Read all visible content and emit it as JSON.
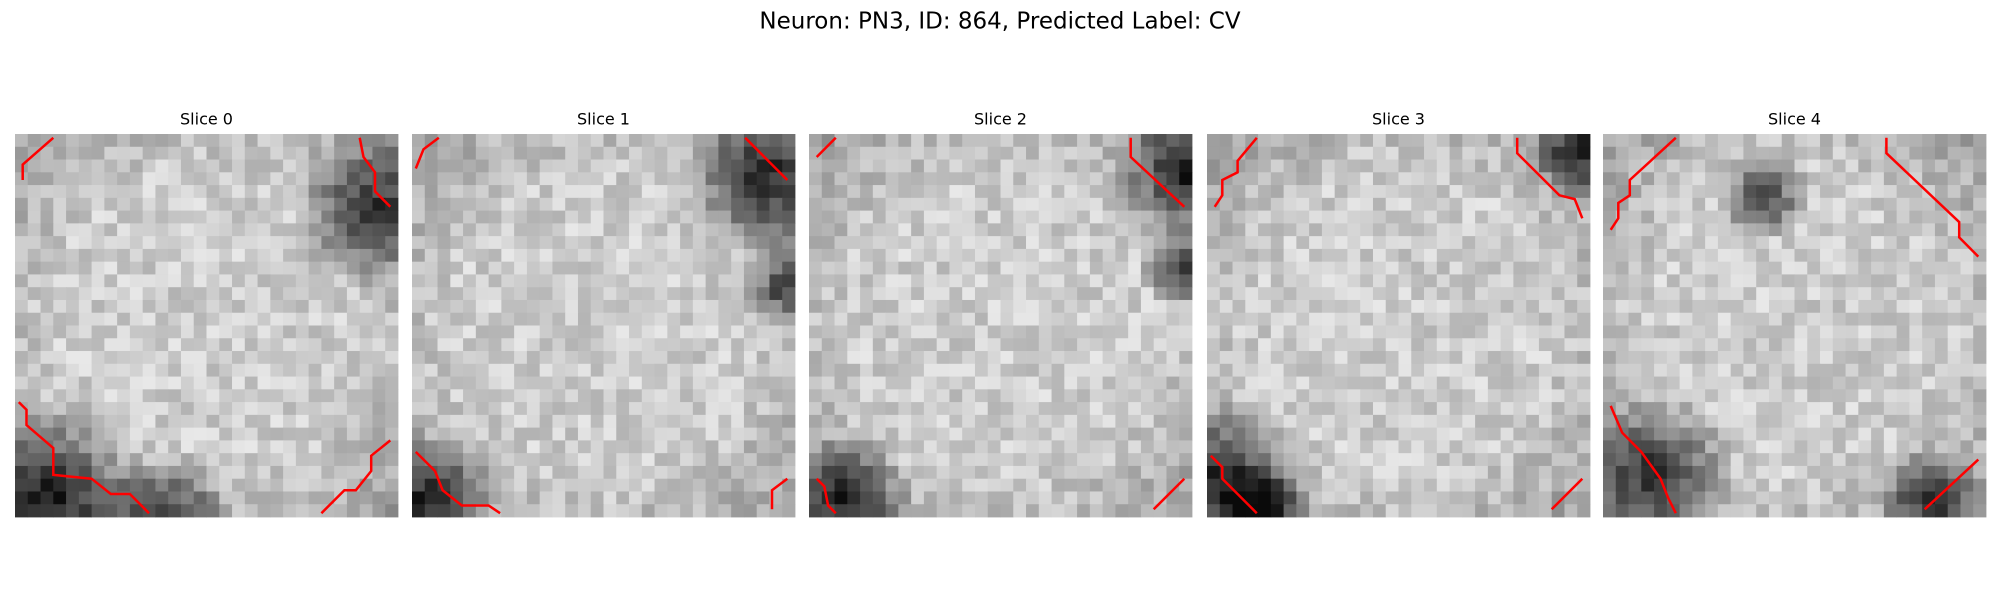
{
  "header": {
    "title": "Neuron: PN3, ID: 864, Predicted Label: CV"
  },
  "panels": [
    {
      "title": "Slice 0"
    },
    {
      "title": "Slice 1"
    },
    {
      "title": "Slice 2"
    },
    {
      "title": "Slice 3"
    },
    {
      "title": "Slice 4"
    }
  ]
}
